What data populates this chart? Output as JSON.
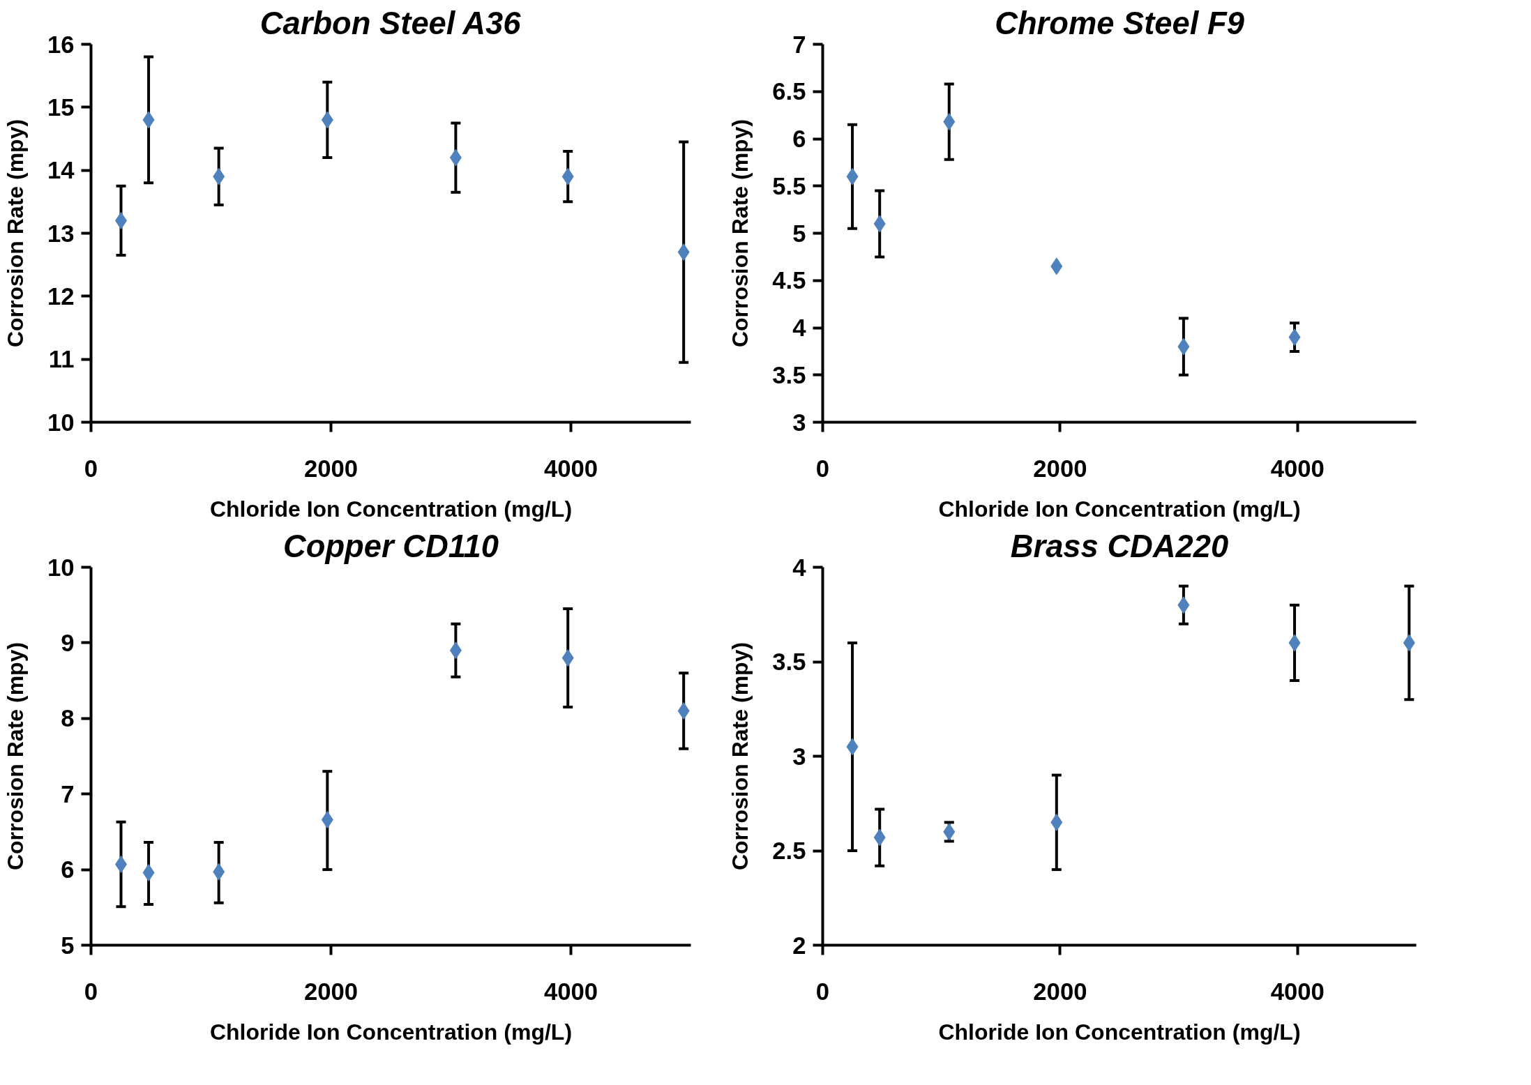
{
  "chart_data": [
    {
      "type": "scatter",
      "title": "Carbon Steel A36",
      "xlabel": "Chloride Ion Concentration (mg/L)",
      "ylabel": "Corrosion Rate (mpy)",
      "x": [
        250,
        480,
        1065,
        1970,
        3040,
        3975,
        4940
      ],
      "series": [
        {
          "color": "#4f81bd",
          "values": [
            13.2,
            14.8,
            13.9,
            14.8,
            14.2,
            13.9,
            12.7
          ],
          "errors": [
            [
              12.65,
              13.75
            ],
            [
              13.8,
              15.8
            ],
            [
              13.45,
              14.35
            ],
            [
              14.2,
              15.4
            ],
            [
              13.65,
              14.75
            ],
            [
              13.5,
              14.3
            ],
            [
              10.95,
              14.45
            ]
          ]
        }
      ],
      "xlim": [
        0,
        5000
      ],
      "xticks": [
        0,
        2000,
        4000
      ],
      "ylim": [
        10,
        16
      ],
      "yticks": [
        10,
        11,
        12,
        13,
        14,
        15,
        16
      ],
      "marker": "diamond",
      "grid": false
    },
    {
      "type": "scatter",
      "title": "Chrome Steel F9",
      "xlabel": "Chloride Ion Concentration (mg/L)",
      "ylabel": "Corrosion Rate (mpy)",
      "x": [
        250,
        480,
        1065,
        1970,
        3040,
        3975
      ],
      "series": [
        {
          "color": "#4f81bd",
          "values": [
            5.6,
            5.1,
            6.18,
            4.65,
            3.8,
            3.9
          ],
          "errors": [
            [
              5.05,
              6.15
            ],
            [
              4.75,
              5.45
            ],
            [
              5.78,
              6.58
            ],
            null,
            [
              3.5,
              4.1
            ],
            [
              3.75,
              4.05
            ]
          ]
        }
      ],
      "xlim": [
        0,
        5000
      ],
      "xticks": [
        0,
        2000,
        4000
      ],
      "ylim": [
        3,
        7
      ],
      "yticks": [
        3,
        3.5,
        4,
        4.5,
        5,
        5.5,
        6,
        6.5,
        7
      ],
      "marker": "diamond",
      "grid": false
    },
    {
      "type": "scatter",
      "title": "Copper CD110",
      "xlabel": "Chloride Ion Concentration (mg/L)",
      "ylabel": "Corrosion Rate (mpy)",
      "x": [
        250,
        480,
        1065,
        1970,
        3040,
        3975,
        4940
      ],
      "series": [
        {
          "color": "#4f81bd",
          "values": [
            6.07,
            5.96,
            5.97,
            6.66,
            8.9,
            8.8,
            8.1
          ],
          "errors": [
            [
              5.51,
              6.63
            ],
            [
              5.54,
              6.36
            ],
            [
              5.56,
              6.36
            ],
            [
              6.0,
              7.3
            ],
            [
              8.55,
              9.25
            ],
            [
              8.15,
              9.45
            ],
            [
              7.6,
              8.6
            ]
          ]
        }
      ],
      "xlim": [
        0,
        5000
      ],
      "xticks": [
        0,
        2000,
        4000
      ],
      "ylim": [
        5,
        10
      ],
      "yticks": [
        5,
        6,
        7,
        8,
        9,
        10
      ],
      "marker": "diamond",
      "grid": false
    },
    {
      "type": "scatter",
      "title": "Brass CDA220",
      "xlabel": "Chloride Ion Concentration (mg/L)",
      "ylabel": "Corrosion Rate (mpy)",
      "x": [
        250,
        480,
        1065,
        1970,
        3040,
        3975,
        4940
      ],
      "series": [
        {
          "color": "#4f81bd",
          "values": [
            3.05,
            2.57,
            2.6,
            2.65,
            3.8,
            3.6,
            3.6
          ],
          "errors": [
            [
              2.5,
              3.6
            ],
            [
              2.42,
              2.72
            ],
            [
              2.55,
              2.65
            ],
            [
              2.4,
              2.9
            ],
            [
              3.7,
              3.9
            ],
            [
              3.4,
              3.8
            ],
            [
              3.3,
              3.9
            ]
          ]
        }
      ],
      "xlim": [
        0,
        5000
      ],
      "xticks": [
        0,
        2000,
        4000
      ],
      "ylim": [
        2,
        4
      ],
      "yticks": [
        2,
        2.5,
        3,
        3.5,
        4
      ],
      "marker": "diamond",
      "grid": false
    }
  ]
}
